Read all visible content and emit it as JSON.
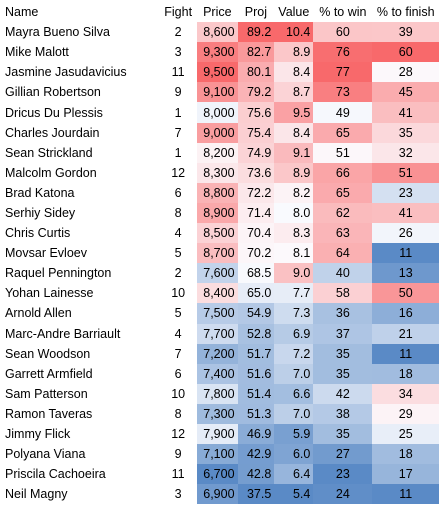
{
  "headers": {
    "name": "Name",
    "fight": "Fight",
    "price": "Price",
    "proj": "Proj",
    "value": "Value",
    "win": "% to win",
    "finish": "% to finish"
  },
  "rows": [
    {
      "name": "Mayra Bueno Silva",
      "fight": "2",
      "price": "8,600",
      "proj": "89.2",
      "value": "10.4",
      "win": "60",
      "finish": "39"
    },
    {
      "name": "Mike Malott",
      "fight": "3",
      "price": "9,300",
      "proj": "82.7",
      "value": "8.9",
      "win": "76",
      "finish": "60"
    },
    {
      "name": "Jasmine Jasudavicius",
      "fight": "11",
      "price": "9,500",
      "proj": "80.1",
      "value": "8.4",
      "win": "77",
      "finish": "28"
    },
    {
      "name": "Gillian Robertson",
      "fight": "9",
      "price": "9,100",
      "proj": "79.2",
      "value": "8.7",
      "win": "73",
      "finish": "45"
    },
    {
      "name": "Dricus Du Plessis",
      "fight": "1",
      "price": "8,000",
      "proj": "75.6",
      "value": "9.5",
      "win": "49",
      "finish": "41"
    },
    {
      "name": "Charles Jourdain",
      "fight": "7",
      "price": "9,000",
      "proj": "75.4",
      "value": "8.4",
      "win": "65",
      "finish": "35"
    },
    {
      "name": "Sean Strickland",
      "fight": "1",
      "price": "8,200",
      "proj": "74.9",
      "value": "9.1",
      "win": "51",
      "finish": "32"
    },
    {
      "name": "Malcolm Gordon",
      "fight": "12",
      "price": "8,300",
      "proj": "73.6",
      "value": "8.9",
      "win": "66",
      "finish": "51"
    },
    {
      "name": "Brad Katona",
      "fight": "6",
      "price": "8,800",
      "proj": "72.2",
      "value": "8.2",
      "win": "65",
      "finish": "23"
    },
    {
      "name": "Serhiy Sidey",
      "fight": "8",
      "price": "8,900",
      "proj": "71.4",
      "value": "8.0",
      "win": "62",
      "finish": "41"
    },
    {
      "name": "Chris Curtis",
      "fight": "4",
      "price": "8,500",
      "proj": "70.4",
      "value": "8.3",
      "win": "63",
      "finish": "26"
    },
    {
      "name": "Movsar Evloev",
      "fight": "5",
      "price": "8,700",
      "proj": "70.2",
      "value": "8.1",
      "win": "64",
      "finish": "11"
    },
    {
      "name": "Raquel Pennington",
      "fight": "2",
      "price": "7,600",
      "proj": "68.5",
      "value": "9.0",
      "win": "40",
      "finish": "13"
    },
    {
      "name": "Yohan Lainesse",
      "fight": "10",
      "price": "8,400",
      "proj": "65.0",
      "value": "7.7",
      "win": "58",
      "finish": "50"
    },
    {
      "name": "Arnold Allen",
      "fight": "5",
      "price": "7,500",
      "proj": "54.9",
      "value": "7.3",
      "win": "36",
      "finish": "16"
    },
    {
      "name": "Marc-Andre Barriault",
      "fight": "4",
      "price": "7,700",
      "proj": "52.8",
      "value": "6.9",
      "win": "37",
      "finish": "21"
    },
    {
      "name": "Sean Woodson",
      "fight": "7",
      "price": "7,200",
      "proj": "51.7",
      "value": "7.2",
      "win": "35",
      "finish": "11"
    },
    {
      "name": "Garrett Armfield",
      "fight": "6",
      "price": "7,400",
      "proj": "51.6",
      "value": "7.0",
      "win": "35",
      "finish": "18"
    },
    {
      "name": "Sam Patterson",
      "fight": "10",
      "price": "7,800",
      "proj": "51.4",
      "value": "6.6",
      "win": "42",
      "finish": "34"
    },
    {
      "name": "Ramon Taveras",
      "fight": "8",
      "price": "7,300",
      "proj": "51.3",
      "value": "7.0",
      "win": "38",
      "finish": "29"
    },
    {
      "name": "Jimmy Flick",
      "fight": "12",
      "price": "7,900",
      "proj": "46.9",
      "value": "5.9",
      "win": "35",
      "finish": "25"
    },
    {
      "name": "Polyana Viana",
      "fight": "9",
      "price": "7,100",
      "proj": "42.9",
      "value": "6.0",
      "win": "27",
      "finish": "18"
    },
    {
      "name": "Priscila Cachoeira",
      "fight": "11",
      "price": "6,700",
      "proj": "42.8",
      "value": "6.4",
      "win": "23",
      "finish": "17"
    },
    {
      "name": "Neil Magny",
      "fight": "3",
      "price": "6,900",
      "proj": "37.5",
      "value": "5.4",
      "win": "24",
      "finish": "11"
    }
  ]
}
